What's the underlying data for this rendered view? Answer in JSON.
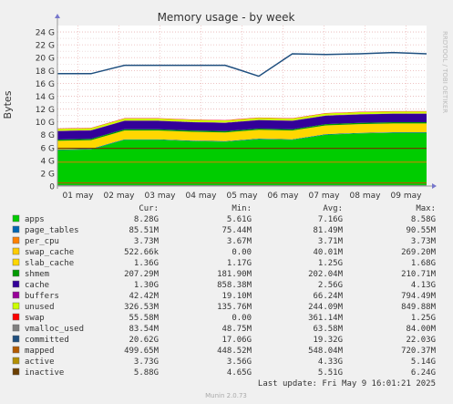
{
  "chart_data": {
    "type": "area",
    "title": "Memory usage - by week",
    "ylabel": "Bytes",
    "xlabel": "",
    "y_unit": "G",
    "ylim": [
      0,
      25
    ],
    "y_ticks": [
      0,
      2,
      4,
      6,
      8,
      10,
      12,
      14,
      16,
      18,
      20,
      22,
      24
    ],
    "y_tick_labels": [
      "0",
      "2 G",
      "4 G",
      "6 G",
      "8 G",
      "10 G",
      "12 G",
      "14 G",
      "16 G",
      "18 G",
      "20 G",
      "22 G",
      "24 G"
    ],
    "x_tick_labels": [
      "01 may",
      "02 may",
      "03 may",
      "04 may",
      "05 may",
      "06 may",
      "07 may",
      "08 may",
      "09 may"
    ],
    "grid": true,
    "side_label": "RRDTOOL / TOBI OETIKER",
    "columns": [
      "Cur:",
      "Min:",
      "Avg:",
      "Max:"
    ],
    "series": [
      {
        "name": "apps",
        "color": "#00cc00",
        "cur": "8.28G",
        "min": "5.61G",
        "avg": "7.16G",
        "max": "8.58G",
        "values": [
          5.6,
          5.7,
          7.2,
          7.2,
          7.0,
          6.9,
          7.3,
          7.2,
          8.0,
          8.2,
          8.3,
          8.3
        ]
      },
      {
        "name": "page_tables",
        "color": "#0066b3",
        "cur": "85.51M",
        "min": "75.44M",
        "avg": "81.49M",
        "max": "90.55M"
      },
      {
        "name": "per_cpu",
        "color": "#ff8000",
        "cur": "3.73M",
        "min": "3.67M",
        "avg": "3.71M",
        "max": "3.73M"
      },
      {
        "name": "swap_cache",
        "color": "#ffcc00",
        "cur": "522.66k",
        "min": "0.00",
        "avg": "40.01M",
        "max": "269.20M"
      },
      {
        "name": "slab_cache",
        "color": "#ffd700",
        "cur": "1.36G",
        "min": "1.17G",
        "avg": "1.25G",
        "max": "1.68G"
      },
      {
        "name": "shmem",
        "color": "#009900",
        "cur": "207.29M",
        "min": "181.90M",
        "avg": "202.04M",
        "max": "210.71M"
      },
      {
        "name": "cache",
        "color": "#330099",
        "cur": "1.30G",
        "min": "858.38M",
        "avg": "2.56G",
        "max": "4.13G"
      },
      {
        "name": "buffers",
        "color": "#990099",
        "cur": "42.42M",
        "min": "19.10M",
        "avg": "66.24M",
        "max": "794.49M"
      },
      {
        "name": "unused",
        "color": "#ccff00",
        "cur": "326.53M",
        "min": "135.76M",
        "avg": "244.09M",
        "max": "849.88M"
      },
      {
        "name": "swap",
        "color": "#ff0000",
        "cur": "55.58M",
        "min": "0.00",
        "avg": "361.14M",
        "max": "1.25G"
      },
      {
        "name": "vmalloc_used",
        "color": "#808080",
        "cur": "83.54M",
        "min": "48.75M",
        "avg": "63.58M",
        "max": "84.00M"
      },
      {
        "name": "committed",
        "color": "#1f4f7f",
        "cur": "20.62G",
        "min": "17.06G",
        "avg": "19.32G",
        "max": "22.03G",
        "values": [
          17.5,
          17.5,
          18.8,
          18.8,
          18.8,
          18.8,
          17.1,
          20.6,
          20.5,
          20.6,
          20.8,
          20.6
        ]
      },
      {
        "name": "mapped",
        "color": "#b35a00",
        "cur": "499.65M",
        "min": "448.52M",
        "avg": "548.04M",
        "max": "720.37M"
      },
      {
        "name": "active",
        "color": "#b38f00",
        "cur": "3.73G",
        "min": "3.56G",
        "avg": "4.33G",
        "max": "5.14G"
      },
      {
        "name": "inactive",
        "color": "#6b3f00",
        "cur": "5.88G",
        "min": "4.65G",
        "avg": "5.51G",
        "max": "6.24G"
      }
    ],
    "last_update": "Last update:  Fri May  9 16:01:21 2025",
    "footer": "Munin 2.0.73"
  }
}
